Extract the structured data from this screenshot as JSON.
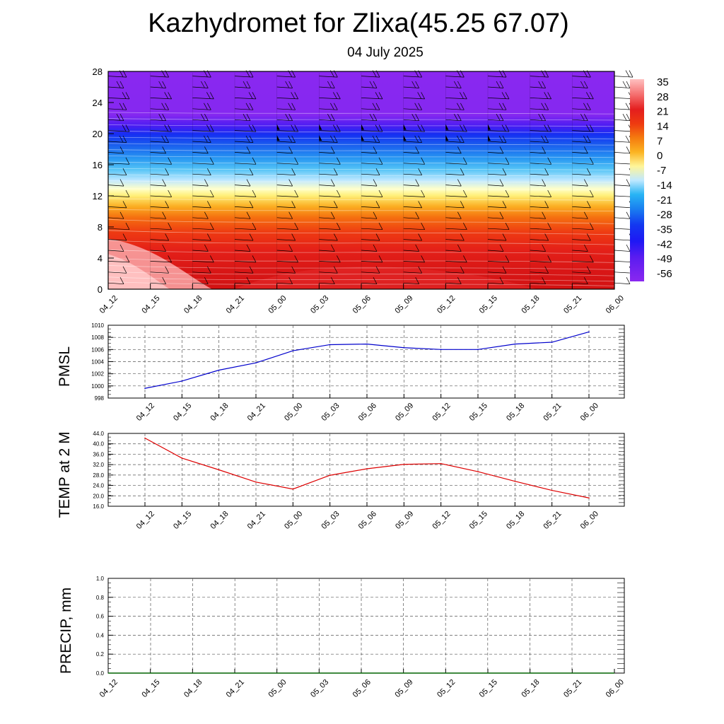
{
  "title": "Kazhydromet for Zlixa(45.25 67.07)",
  "subtitle": "04 July 2025",
  "time_labels": [
    "04_12",
    "04_15",
    "04_18",
    "04_21",
    "05_00",
    "05_03",
    "05_06",
    "05_09",
    "05_12",
    "05_15",
    "05_18",
    "05_21",
    "06_00"
  ],
  "chart_data": [
    {
      "type": "heatmap",
      "title": "Kazhydromet for Zlixa(45.25 67.07)",
      "x": [
        "04_12",
        "04_15",
        "04_18",
        "04_21",
        "05_00",
        "05_03",
        "05_06",
        "05_09",
        "05_12",
        "05_15",
        "05_18",
        "05_21",
        "06_00"
      ],
      "y_ticks": [
        0,
        4,
        8,
        12,
        16,
        20,
        24,
        28
      ],
      "ylim": [
        0,
        28
      ],
      "colorbar_labels": [
        "35",
        "28",
        "21",
        "14",
        "7",
        "0",
        "-7",
        "-14",
        "-21",
        "-28",
        "-35",
        "-42",
        "-49",
        "-56"
      ],
      "colorbar_colors": [
        "#ffc0c0",
        "#f46a6a",
        "#e41e1e",
        "#ee3a10",
        "#f57b0f",
        "#fbb321",
        "#fff598",
        "#bfe8ff",
        "#28b4f4",
        "#1a80f0",
        "#1338f0",
        "#1e18f4",
        "#5a1cf0",
        "#8a28f0"
      ],
      "legend_position": "right",
      "wind_barbs": true,
      "grid": false
    },
    {
      "type": "line",
      "ylabel": "PMSL",
      "categories": [
        "04_12",
        "04_15",
        "04_18",
        "04_21",
        "05_00",
        "05_03",
        "05_06",
        "05_09",
        "05_12",
        "05_15",
        "05_18",
        "05_21",
        "06_00"
      ],
      "values": [
        999.6,
        1000.8,
        1002.6,
        1003.8,
        1005.8,
        1006.8,
        1006.9,
        1006.3,
        1006.0,
        1006.0,
        1006.9,
        1007.2,
        1008.9
      ],
      "ylim": [
        998,
        1010
      ],
      "y_ticks": [
        998,
        1000,
        1002,
        1004,
        1006,
        1008,
        1010
      ],
      "y_tick_labels": [
        "998",
        "1000",
        "1002",
        "1004",
        "1006",
        "1008",
        "1010"
      ],
      "color": "#0000cc",
      "grid": true
    },
    {
      "type": "line",
      "ylabel": "TEMP at 2 M",
      "categories": [
        "04_12",
        "04_15",
        "04_18",
        "04_21",
        "05_00",
        "05_03",
        "05_06",
        "05_09",
        "05_12",
        "05_15",
        "05_18",
        "05_21",
        "06_00"
      ],
      "values": [
        42.2,
        34.5,
        30.0,
        25.3,
        22.6,
        27.9,
        30.4,
        32.1,
        32.4,
        29.3,
        25.6,
        22.1,
        19.2
      ],
      "ylim": [
        16,
        44
      ],
      "y_ticks": [
        16,
        20,
        24,
        28,
        32,
        36,
        40,
        44
      ],
      "y_tick_labels": [
        "16.0",
        "20.0",
        "24.0",
        "28.0",
        "32.0",
        "36.0",
        "40.0",
        "44.0"
      ],
      "color": "#dd0000",
      "grid": true
    },
    {
      "type": "line",
      "ylabel": "PRECIP, mm",
      "categories": [
        "04_12",
        "04_15",
        "04_18",
        "04_21",
        "05_00",
        "05_03",
        "05_06",
        "05_09",
        "05_12",
        "05_15",
        "05_18",
        "05_21",
        "06_00"
      ],
      "values": [
        0,
        0,
        0,
        0,
        0,
        0,
        0,
        0,
        0,
        0,
        0,
        0,
        0
      ],
      "ylim": [
        0,
        1
      ],
      "y_ticks": [
        0,
        0.2,
        0.4,
        0.6,
        0.8,
        1.0
      ],
      "y_tick_labels": [
        "0.0",
        "0.2",
        "0.4",
        "0.6",
        "0.8",
        "1.0"
      ],
      "color": "#006400",
      "grid": true
    }
  ]
}
